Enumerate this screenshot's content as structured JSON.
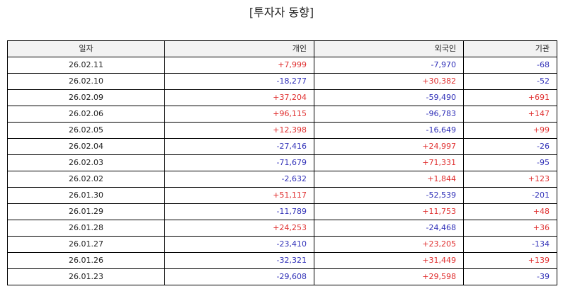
{
  "title": "[투자자 동향]",
  "colors": {
    "positive": "#e03030",
    "negative": "#3030b8",
    "header_bg": "#f2f2f2",
    "border": "#000000"
  },
  "table": {
    "headers": [
      "일자",
      "개인",
      "외국인",
      "기관"
    ],
    "rows": [
      [
        "26.02.11",
        "+7,999",
        "-7,970",
        "-68"
      ],
      [
        "26.02.10",
        "-18,277",
        "+30,382",
        "-52"
      ],
      [
        "26.02.09",
        "+37,204",
        "-59,490",
        "+691"
      ],
      [
        "26.02.06",
        "+96,115",
        "-96,783",
        "+147"
      ],
      [
        "26.02.05",
        "+12,398",
        "-16,649",
        "+99"
      ],
      [
        "26.02.04",
        "-27,416",
        "+24,997",
        "-26"
      ],
      [
        "26.02.03",
        "-71,679",
        "+71,331",
        "-95"
      ],
      [
        "26.02.02",
        "-2,632",
        "+1,844",
        "+123"
      ],
      [
        "26.01.30",
        "+51,117",
        "-52,539",
        "-201"
      ],
      [
        "26.01.29",
        "-11,789",
        "+11,753",
        "+48"
      ],
      [
        "26.01.28",
        "+24,253",
        "-24,468",
        "+36"
      ],
      [
        "26.01.27",
        "-23,410",
        "+23,205",
        "-134"
      ],
      [
        "26.01.26",
        "-32,321",
        "+31,449",
        "+139"
      ],
      [
        "26.01.23",
        "-29,608",
        "+29,598",
        "-39"
      ]
    ]
  }
}
